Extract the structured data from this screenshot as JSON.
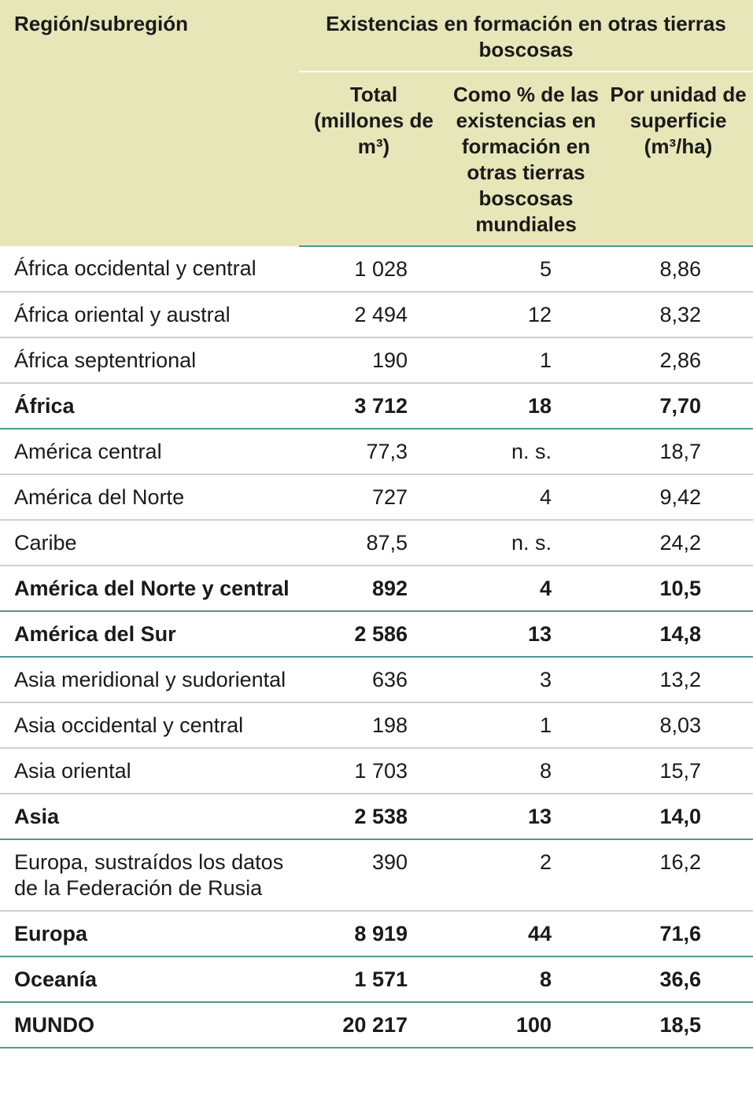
{
  "header": {
    "region_label": "Región/subregión",
    "group_label": "Existencias en formación en otras tierras boscosas",
    "col_total": "Total (millones de m³)",
    "col_percent": "Como % de las existencias en formación en otras tierras boscosas mundiales",
    "col_per_area": "Por unidad de superficie (m³/ha)"
  },
  "rows": [
    {
      "region": "África occidental y central",
      "total": "1 028",
      "percent": "5",
      "per_area": "8,86"
    },
    {
      "region": "África oriental y austral",
      "total": "2 494",
      "percent": "12",
      "per_area": "8,32"
    },
    {
      "region": "África septentrional",
      "total": "190",
      "percent": "1",
      "per_area": "2,86"
    },
    {
      "region": "África",
      "total": "3 712",
      "percent": "18",
      "per_area": "7,70"
    },
    {
      "region": "América central",
      "total": "77,3",
      "percent": "n. s.",
      "per_area": "18,7"
    },
    {
      "region": "América del Norte",
      "total": "727",
      "percent": "4",
      "per_area": "9,42"
    },
    {
      "region": "Caribe",
      "total": "87,5",
      "percent": "n. s.",
      "per_area": "24,2"
    },
    {
      "region": "América del Norte y central",
      "total": "892",
      "percent": "4",
      "per_area": "10,5"
    },
    {
      "region": "América del Sur",
      "total": "2 586",
      "percent": "13",
      "per_area": "14,8"
    },
    {
      "region": "Asia meridional y sudoriental",
      "total": "636",
      "percent": "3",
      "per_area": "13,2"
    },
    {
      "region": "Asia occidental y central",
      "total": "198",
      "percent": "1",
      "per_area": "8,03"
    },
    {
      "region": "Asia oriental",
      "total": "1 703",
      "percent": "8",
      "per_area": "15,7"
    },
    {
      "region": "Asia",
      "total": "2 538",
      "percent": "13",
      "per_area": "14,0"
    },
    {
      "region": "Europa, sustraídos los datos de la Federación de Rusia",
      "total": "390",
      "percent": "2",
      "per_area": "16,2"
    },
    {
      "region": "Europa",
      "total": "8 919",
      "percent": "44",
      "per_area": "71,6"
    },
    {
      "region": "Oceanía",
      "total": "1 571",
      "percent": "8",
      "per_area": "36,6"
    },
    {
      "region": "MUNDO",
      "total": "20 217",
      "percent": "100",
      "per_area": "18,5"
    }
  ]
}
